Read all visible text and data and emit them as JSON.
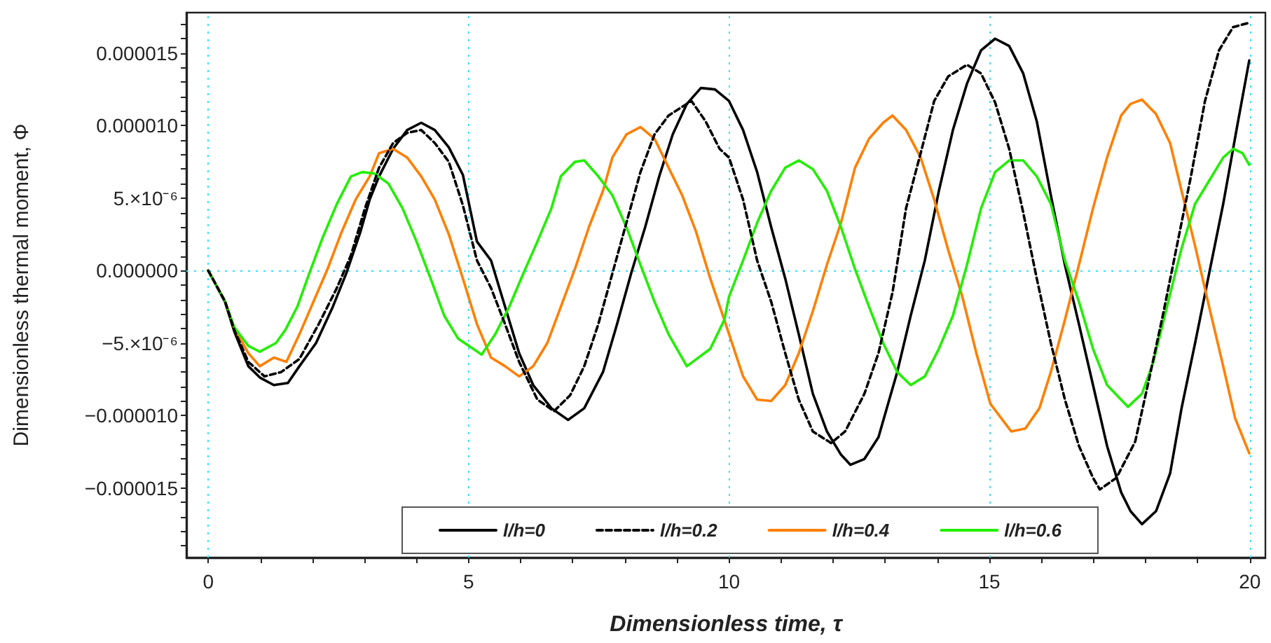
{
  "chart_data": {
    "type": "line",
    "xlabel": "Dimensionless time, τ",
    "ylabel": "Dimensionless thermal moment, Φ",
    "xlim": [
      -0.42,
      20.3
    ],
    "ylim": [
      -1.98e-05,
      1.78e-05
    ],
    "xticks": [
      0,
      {
        "value": 1,
        "label": null
      },
      {
        "value": 2,
        "label": null
      },
      {
        "value": 3,
        "label": null
      },
      {
        "value": 4,
        "label": null
      },
      5,
      {
        "value": 6,
        "label": null
      },
      {
        "value": 7,
        "label": null
      },
      {
        "value": 8,
        "label": null
      },
      {
        "value": 9,
        "label": null
      },
      10,
      {
        "value": 11,
        "label": null
      },
      {
        "value": 12,
        "label": null
      },
      {
        "value": 13,
        "label": null
      },
      {
        "value": 14,
        "label": null
      },
      15,
      {
        "value": 16,
        "label": null
      },
      {
        "value": 17,
        "label": null
      },
      {
        "value": 18,
        "label": null
      },
      {
        "value": 19,
        "label": null
      },
      20
    ],
    "yticks": [
      {
        "value": -1.9e-05,
        "label": null
      },
      {
        "value": -1.8e-05,
        "label": null
      },
      {
        "value": -1.7e-05,
        "label": null
      },
      {
        "value": -1.6e-05,
        "label": null
      },
      {
        "value": -1.5e-05,
        "label": "−0.000015"
      },
      {
        "value": -1.4e-05,
        "label": null
      },
      {
        "value": -1.3e-05,
        "label": null
      },
      {
        "value": -1.2e-05,
        "label": null
      },
      {
        "value": -1.1e-05,
        "label": null
      },
      {
        "value": -1e-05,
        "label": "−0.000010"
      },
      {
        "value": -9e-06,
        "label": null
      },
      {
        "value": -8e-06,
        "label": null
      },
      {
        "value": -7e-06,
        "label": null
      },
      {
        "value": -6e-06,
        "label": null
      },
      {
        "value": -5e-06,
        "label": "−5.×10⁻⁶"
      },
      {
        "value": -4e-06,
        "label": null
      },
      {
        "value": -3e-06,
        "label": null
      },
      {
        "value": -2e-06,
        "label": null
      },
      {
        "value": -1e-06,
        "label": null
      },
      {
        "value": 0,
        "label": "0.000000"
      },
      {
        "value": 1e-06,
        "label": null
      },
      {
        "value": 2e-06,
        "label": null
      },
      {
        "value": 3e-06,
        "label": null
      },
      {
        "value": 4e-06,
        "label": null
      },
      {
        "value": 5e-06,
        "label": "5.×10⁻⁶"
      },
      {
        "value": 6e-06,
        "label": null
      },
      {
        "value": 7e-06,
        "label": null
      },
      {
        "value": 8e-06,
        "label": null
      },
      {
        "value": 9e-06,
        "label": null
      },
      {
        "value": 1e-05,
        "label": "0.000010"
      },
      {
        "value": 1.1e-05,
        "label": null
      },
      {
        "value": 1.2e-05,
        "label": null
      },
      {
        "value": 1.3e-05,
        "label": null
      },
      {
        "value": 1.4e-05,
        "label": null
      },
      {
        "value": 1.5e-05,
        "label": "0.000015"
      },
      {
        "value": 1.6e-05,
        "label": null
      },
      {
        "value": 1.7e-05,
        "label": null
      }
    ],
    "grid": true,
    "legend": "bottom",
    "series": [
      {
        "name": "l/h=0",
        "color": "#000000",
        "line_style": "solid",
        "x": [
          0,
          0.32,
          0.5,
          0.77,
          1.0,
          1.26,
          1.53,
          1.75,
          2.07,
          2.38,
          2.65,
          2.92,
          3.1,
          3.28,
          3.55,
          3.82,
          4.09,
          4.35,
          4.62,
          4.89,
          5.16,
          5.43,
          5.7,
          5.97,
          6.24,
          6.59,
          6.91,
          7.22,
          7.58,
          7.85,
          8.12,
          8.39,
          8.66,
          8.92,
          9.19,
          9.46,
          9.73,
          10.0,
          10.27,
          10.54,
          10.81,
          11.08,
          11.34,
          11.61,
          11.88,
          12.15,
          12.33,
          12.6,
          12.87,
          13.23,
          13.49,
          13.76,
          14.03,
          14.3,
          14.57,
          14.84,
          15.11,
          15.38,
          15.65,
          15.91,
          16.18,
          16.45,
          16.72,
          16.99,
          17.26,
          17.53,
          17.71,
          17.93,
          18.2,
          18.47,
          18.69,
          18.95,
          19.22,
          19.49,
          19.76,
          19.99
        ],
        "values": [
          0,
          -2.15e-06,
          -4.2e-06,
          -6.6e-06,
          -7.4e-06,
          -7.9e-06,
          -7.75e-06,
          -6.6e-06,
          -5e-06,
          -2.6e-06,
          -2e-07,
          2.65e-06,
          4.9e-06,
          6.5e-06,
          8.4e-06,
          9.7e-06,
          1.02e-05,
          9.7e-06,
          8.5e-06,
          6.6e-06,
          2e-06,
          7e-07,
          -2.5e-06,
          -5.7e-06,
          -7.9e-06,
          -9.5e-06,
          -1.03e-05,
          -9.5e-06,
          -7e-06,
          -3.7e-06,
          -2e-07,
          3e-06,
          6.5e-06,
          9.4e-06,
          1.15e-05,
          1.26e-05,
          1.25e-05,
          1.17e-05,
          9.7e-06,
          6.8e-06,
          3e-06,
          -5.5e-07,
          -4.4e-06,
          -8.5e-06,
          -1.11e-05,
          -1.27e-05,
          -1.34e-05,
          -1.3e-05,
          -1.15e-05,
          -7e-06,
          -3.1e-06,
          7e-07,
          5.5e-06,
          9.7e-06,
          1.29e-05,
          1.52e-05,
          1.6e-05,
          1.55e-05,
          1.36e-05,
          1.03e-05,
          5.2e-06,
          4e-07,
          -3.7e-06,
          -7.9e-06,
          -1.21e-05,
          -1.53e-05,
          -1.66e-05,
          -1.75e-05,
          -1.66e-05,
          -1.4e-05,
          -9.5e-06,
          -5e-06,
          -2e-07,
          4.6e-06,
          1e-05,
          1.45e-05
        ]
      },
      {
        "name": "l/h=0.2",
        "color": "#000000",
        "line_style": "dashed",
        "x": [
          0,
          0.32,
          0.5,
          0.77,
          1.08,
          1.4,
          1.75,
          2.12,
          2.47,
          2.74,
          3.01,
          3.28,
          3.55,
          3.82,
          4.09,
          4.35,
          4.62,
          4.89,
          5.16,
          5.43,
          5.7,
          5.97,
          6.32,
          6.64,
          6.95,
          7.22,
          7.49,
          7.76,
          8.03,
          8.3,
          8.57,
          8.84,
          9.1,
          9.28,
          9.55,
          9.82,
          10.0,
          10.27,
          10.54,
          10.81,
          11.08,
          11.34,
          11.61,
          11.96,
          12.23,
          12.6,
          12.87,
          13.14,
          13.4,
          13.68,
          13.94,
          14.21,
          14.57,
          14.84,
          15.11,
          15.38,
          15.65,
          15.91,
          16.18,
          16.45,
          16.72,
          16.99,
          17.12,
          17.44,
          17.8,
          18.06,
          18.33,
          18.6,
          18.87,
          19.14,
          19.41,
          19.68,
          19.99
        ],
        "values": [
          0,
          -2.1e-06,
          -4.1e-06,
          -6.3e-06,
          -7.3e-06,
          -7e-06,
          -6.1e-06,
          -3.7e-06,
          -1.2e-06,
          1.05e-06,
          4.3e-06,
          7.1e-06,
          8.8e-06,
          9.5e-06,
          9.7e-06,
          8.8e-06,
          7.5e-06,
          4.5e-06,
          7e-07,
          -1.2e-06,
          -3.7e-06,
          -6.3e-06,
          -8.9e-06,
          -9.7e-06,
          -8.6e-06,
          -6.6e-06,
          -3.7e-06,
          -2e-07,
          3.3e-06,
          6.8e-06,
          9.4e-06,
          1.07e-05,
          1.13e-05,
          1.17e-05,
          1.03e-05,
          8.4e-06,
          7.8e-06,
          4.9e-06,
          7e-07,
          -2.15e-06,
          -5.7e-06,
          -8.9e-06,
          -1.11e-05,
          -1.19e-05,
          -1.11e-05,
          -8.5e-06,
          -5.7e-06,
          -1.5e-06,
          4.3e-06,
          8.1e-06,
          1.17e-05,
          1.34e-05,
          1.42e-05,
          1.36e-05,
          1.16e-05,
          8.4e-06,
          4e-06,
          -5.5e-07,
          -5e-06,
          -8.9e-06,
          -1.21e-05,
          -1.43e-05,
          -1.51e-05,
          -1.43e-05,
          -1.18e-05,
          -7.6e-06,
          -3.1e-06,
          1.7e-06,
          6.5e-06,
          1.17e-05,
          1.52e-05,
          1.68e-05,
          1.71e-05
        ]
      },
      {
        "name": "l/h=0.4",
        "color": "#ff7f00",
        "line_style": "solid",
        "x": [
          0,
          0.32,
          0.5,
          0.77,
          0.99,
          1.26,
          1.5,
          1.75,
          2.02,
          2.29,
          2.56,
          2.83,
          3.1,
          3.28,
          3.55,
          3.82,
          4.09,
          4.35,
          4.62,
          4.89,
          5.16,
          5.43,
          5.7,
          5.97,
          6.24,
          6.51,
          6.77,
          7.04,
          7.31,
          7.58,
          7.76,
          8.03,
          8.3,
          8.57,
          8.84,
          9.1,
          9.37,
          9.64,
          9.91,
          10.27,
          10.54,
          10.81,
          11.08,
          11.34,
          11.61,
          11.88,
          12.15,
          12.42,
          12.69,
          12.96,
          13.14,
          13.4,
          13.68,
          13.94,
          14.21,
          14.48,
          14.75,
          15.02,
          15.42,
          15.69,
          15.96,
          16.18,
          16.45,
          16.72,
          16.99,
          17.26,
          17.53,
          17.71,
          17.93,
          18.2,
          18.47,
          18.69,
          18.95,
          19.22,
          19.49,
          19.72,
          19.99
        ],
        "values": [
          0,
          -2.1e-06,
          -4e-06,
          -5.7e-06,
          -6.6e-06,
          -6e-06,
          -6.3e-06,
          -4.4e-06,
          -2.15e-06,
          1e-07,
          2.65e-06,
          4.9e-06,
          6.5e-06,
          8.1e-06,
          8.4e-06,
          7.8e-06,
          6.5e-06,
          4.9e-06,
          2.5e-06,
          -5.5e-07,
          -3.7e-06,
          -6e-06,
          -6.6e-06,
          -7.3e-06,
          -6.6e-06,
          -5e-06,
          -2.5e-06,
          1e-07,
          3e-06,
          5.5e-06,
          7.8e-06,
          9.4e-06,
          9.9e-06,
          9.1e-06,
          7.1e-06,
          5.2e-06,
          2.65e-06,
          -5.5e-07,
          -3.4e-06,
          -7.3e-06,
          -8.9e-06,
          -9e-06,
          -7.9e-06,
          -5.7e-06,
          -2.8e-06,
          4e-07,
          3.3e-06,
          7.1e-06,
          9.1e-06,
          1.02e-05,
          1.07e-05,
          9.7e-06,
          7.8e-06,
          4.9e-06,
          1.4e-06,
          -1.8e-06,
          -5.7e-06,
          -9.2e-06,
          -1.11e-05,
          -1.09e-05,
          -9.5e-06,
          -7e-06,
          -3.4e-06,
          4e-07,
          4.3e-06,
          7.8e-06,
          1.07e-05,
          1.15e-05,
          1.18e-05,
          1.08e-05,
          8.8e-06,
          5.5e-06,
          1.7e-06,
          -2.5e-06,
          -6.6e-06,
          -1.02e-05,
          -1.26e-05
        ]
      },
      {
        "name": "l/h=0.6",
        "color": "#22ee00",
        "line_style": "solid",
        "x": [
          0,
          0.32,
          0.5,
          0.77,
          0.99,
          1.3,
          1.48,
          1.71,
          1.94,
          2.2,
          2.47,
          2.74,
          2.96,
          3.19,
          3.46,
          3.73,
          4.0,
          4.27,
          4.53,
          4.8,
          5.25,
          5.51,
          5.78,
          6.05,
          6.32,
          6.59,
          6.77,
          7.04,
          7.22,
          7.49,
          7.76,
          8.03,
          8.3,
          8.57,
          8.84,
          9.19,
          9.64,
          9.91,
          10.0,
          10.27,
          10.54,
          10.81,
          11.08,
          11.34,
          11.61,
          11.88,
          12.15,
          12.42,
          12.69,
          12.96,
          13.23,
          13.49,
          13.76,
          14.03,
          14.3,
          14.57,
          14.84,
          15.11,
          15.38,
          15.65,
          15.91,
          16.18,
          16.45,
          16.72,
          16.99,
          17.26,
          17.66,
          17.93,
          18.15,
          18.41,
          18.68,
          18.95,
          19.22,
          19.49,
          19.68,
          19.86,
          19.99
        ],
        "values": [
          0,
          -2.1e-06,
          -3.9e-06,
          -5.2e-06,
          -5.6e-06,
          -5e-06,
          -4.1e-06,
          -2.5e-06,
          -2e-07,
          2.3e-06,
          4.6e-06,
          6.5e-06,
          6.8e-06,
          6.7e-06,
          6e-06,
          4.3e-06,
          2e-06,
          -5.5e-07,
          -3.1e-06,
          -4.7e-06,
          -5.8e-06,
          -4.4e-06,
          -2.5e-06,
          -2e-07,
          2e-06,
          4.3e-06,
          6.5e-06,
          7.5e-06,
          7.6e-06,
          6.5e-06,
          5.2e-06,
          3e-06,
          4e-07,
          -2.15e-06,
          -4.4e-06,
          -6.6e-06,
          -5.4e-06,
          -3.4e-06,
          -1.8e-06,
          7e-07,
          3.3e-06,
          5.5e-06,
          7.1e-06,
          7.6e-06,
          7e-06,
          5.5e-06,
          3e-06,
          1e-07,
          -2.5e-06,
          -5e-06,
          -7e-06,
          -7.9e-06,
          -7.3e-06,
          -5.4e-06,
          -3.1e-06,
          4e-07,
          4.3e-06,
          6.8e-06,
          7.6e-06,
          7.6e-06,
          6.5e-06,
          4.6e-06,
          7e-07,
          -2.15e-06,
          -5.4e-06,
          -7.9e-06,
          -9.4e-06,
          -8.5e-06,
          -6.3e-06,
          -2.5e-06,
          1.4e-06,
          4.6e-06,
          6.2e-06,
          7.8e-06,
          8.4e-06,
          8.1e-06,
          7.3e-06
        ]
      }
    ]
  }
}
